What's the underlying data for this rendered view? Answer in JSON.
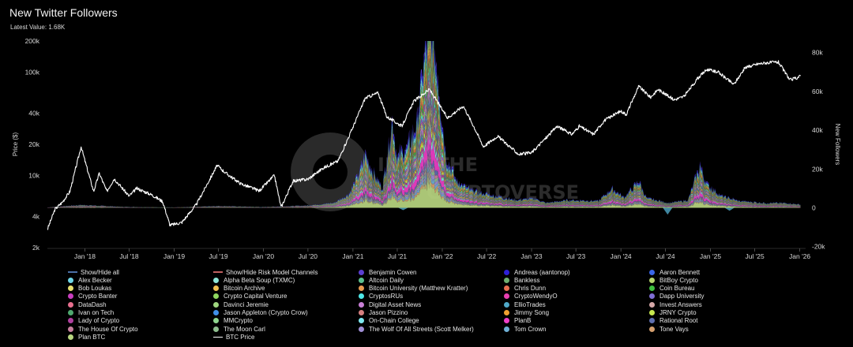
{
  "chart_data": {
    "type": "area",
    "title": "New Twitter Followers",
    "subtitle": "Latest Value: 1.68K",
    "ylabel_left": "Price ($)",
    "ylabel_right": "New Followers",
    "left_axis": {
      "scale": "log",
      "ticks": [
        2000,
        4000,
        10000,
        20000,
        40000,
        100000,
        200000
      ],
      "tick_labels": [
        "2k",
        "4k",
        "10k",
        "20k",
        "40k",
        "100k",
        "200k"
      ]
    },
    "right_axis": {
      "ticks": [
        -20000,
        0,
        20000,
        40000,
        60000,
        80000
      ],
      "tick_labels": [
        "-20k",
        "0",
        "20k",
        "40k",
        "60k",
        "80k"
      ]
    },
    "x_tick_labels": [
      "Jan '18",
      "Jul '18",
      "Jan '19",
      "Jul '19",
      "Jan '20",
      "Jul '20",
      "Jan '21",
      "Jul '21",
      "Jan '22",
      "Jul '22",
      "Jan '23",
      "Jul '23",
      "Jan '24",
      "Jul '24",
      "Jan '25",
      "Jul '25",
      "Jan '26"
    ],
    "watermark": "INTO THE CRYPTOVERSE",
    "btc_price": {
      "name": "BTC Price",
      "points": [
        [
          "2017-08-01",
          3000
        ],
        [
          "2017-09-01",
          4700
        ],
        [
          "2017-10-01",
          5500
        ],
        [
          "2017-11-01",
          7000
        ],
        [
          "2017-12-17",
          19000
        ],
        [
          "2018-01-01",
          14000
        ],
        [
          "2018-02-06",
          7000
        ],
        [
          "2018-03-01",
          10500
        ],
        [
          "2018-04-01",
          7000
        ],
        [
          "2018-05-01",
          9300
        ],
        [
          "2018-07-01",
          6300
        ],
        [
          "2018-08-01",
          7500
        ],
        [
          "2018-10-01",
          6500
        ],
        [
          "2018-11-15",
          5600
        ],
        [
          "2018-12-15",
          3300
        ],
        [
          "2019-02-01",
          3500
        ],
        [
          "2019-04-01",
          5200
        ],
        [
          "2019-06-26",
          12500
        ],
        [
          "2019-08-01",
          10500
        ],
        [
          "2019-10-01",
          8300
        ],
        [
          "2019-12-15",
          7100
        ],
        [
          "2020-02-15",
          10000
        ],
        [
          "2020-03-13",
          4900
        ],
        [
          "2020-05-01",
          8800
        ],
        [
          "2020-07-01",
          9200
        ],
        [
          "2020-09-01",
          11800
        ],
        [
          "2020-11-01",
          13800
        ],
        [
          "2020-12-31",
          29000
        ],
        [
          "2021-02-20",
          56000
        ],
        [
          "2021-04-14",
          63000
        ],
        [
          "2021-05-19",
          37000
        ],
        [
          "2021-07-20",
          30000
        ],
        [
          "2021-09-06",
          52000
        ],
        [
          "2021-11-10",
          68000
        ],
        [
          "2022-01-22",
          36000
        ],
        [
          "2022-03-28",
          47000
        ],
        [
          "2022-05-12",
          29000
        ],
        [
          "2022-06-18",
          19000
        ],
        [
          "2022-08-15",
          24000
        ],
        [
          "2022-11-09",
          16000
        ],
        [
          "2022-12-31",
          16500
        ],
        [
          "2023-03-15",
          25000
        ],
        [
          "2023-04-15",
          30000
        ],
        [
          "2023-06-15",
          25000
        ],
        [
          "2023-07-15",
          30000
        ],
        [
          "2023-09-11",
          25000
        ],
        [
          "2023-10-25",
          34000
        ],
        [
          "2023-12-31",
          42000
        ],
        [
          "2024-01-23",
          39000
        ],
        [
          "2024-03-14",
          73000
        ],
        [
          "2024-05-01",
          57000
        ],
        [
          "2024-06-01",
          68000
        ],
        [
          "2024-08-05",
          54000
        ],
        [
          "2024-09-15",
          58000
        ],
        [
          "2024-11-12",
          88000
        ],
        [
          "2024-12-17",
          106000
        ],
        [
          "2025-02-01",
          100000
        ],
        [
          "2025-04-07",
          76000
        ],
        [
          "2025-05-22",
          110000
        ],
        [
          "2025-07-14",
          120000
        ],
        [
          "2025-08-14",
          123000
        ],
        [
          "2025-10-06",
          125000
        ],
        [
          "2025-11-21",
          84000
        ],
        [
          "2025-12-20",
          88000
        ],
        [
          "2026-01-05",
          92000
        ]
      ]
    },
    "followers_total": {
      "name": "New Followers (stacked)",
      "points": [
        [
          "2017-08-01",
          200
        ],
        [
          "2017-12-20",
          1500
        ],
        [
          "2018-06-01",
          500
        ],
        [
          "2019-01-01",
          200
        ],
        [
          "2019-07-01",
          900
        ],
        [
          "2020-01-01",
          400
        ],
        [
          "2020-07-01",
          1200
        ],
        [
          "2020-10-15",
          2500
        ],
        [
          "2020-12-15",
          7000
        ],
        [
          "2021-01-20",
          16000
        ],
        [
          "2021-02-20",
          28000
        ],
        [
          "2021-03-25",
          18000
        ],
        [
          "2021-05-01",
          10000
        ],
        [
          "2021-05-15",
          22000
        ],
        [
          "2021-06-10",
          46000
        ],
        [
          "2021-07-01",
          26000
        ],
        [
          "2021-08-15",
          32000
        ],
        [
          "2021-09-20",
          45000
        ],
        [
          "2021-10-20",
          78000
        ],
        [
          "2021-11-15",
          96000
        ],
        [
          "2021-12-10",
          76000
        ],
        [
          "2022-01-15",
          28000
        ],
        [
          "2022-03-01",
          14000
        ],
        [
          "2022-05-01",
          9000
        ],
        [
          "2022-07-01",
          7000
        ],
        [
          "2022-11-01",
          4000
        ],
        [
          "2023-01-15",
          5000
        ],
        [
          "2023-03-01",
          2500
        ],
        [
          "2023-06-01",
          4000
        ],
        [
          "2023-10-01",
          3500
        ],
        [
          "2023-11-25",
          10000
        ],
        [
          "2024-01-15",
          5500
        ],
        [
          "2024-03-15",
          14000
        ],
        [
          "2024-04-15",
          5000
        ],
        [
          "2024-07-15",
          2500
        ],
        [
          "2024-10-01",
          4000
        ],
        [
          "2024-11-20",
          22000
        ],
        [
          "2024-12-20",
          12000
        ],
        [
          "2025-02-15",
          6000
        ],
        [
          "2025-05-01",
          3500
        ],
        [
          "2025-08-15",
          2500
        ],
        [
          "2025-11-01",
          2500
        ],
        [
          "2026-01-05",
          1700
        ]
      ]
    },
    "legend": [
      {
        "label": "Show/Hide all",
        "color": "#4a6fa5",
        "kind": "line"
      },
      {
        "label": "Show/Hide Risk Model Channels",
        "color": "#c06060",
        "kind": "line"
      },
      {
        "label": "Benjamin Cowen",
        "color": "#5b3fd1"
      },
      {
        "label": "Andreas (aantonop)",
        "color": "#2d1fd6"
      },
      {
        "label": "Aaron Bennett",
        "color": "#3a66e8"
      },
      {
        "label": "Alex Becker",
        "color": "#6fd6e8"
      },
      {
        "label": "Alpha Beta Soup (TXMC)",
        "color": "#8fe6d8"
      },
      {
        "label": "Altcoin Daily",
        "color": "#5bbf8f"
      },
      {
        "label": "Bankless",
        "color": "#6fae6f"
      },
      {
        "label": "BitBoy Crypto",
        "color": "#b8d66f"
      },
      {
        "label": "Bob Loukas",
        "color": "#e8e06f"
      },
      {
        "label": "Bitcoin Archive",
        "color": "#f0c050"
      },
      {
        "label": "Bitcoin University (Matthew Kratter)",
        "color": "#e89a50"
      },
      {
        "label": "Chris Dunn",
        "color": "#e86f50"
      },
      {
        "label": "Coin Bureau",
        "color": "#3fbf3f"
      },
      {
        "label": "Crypto Banter",
        "color": "#c93fbf"
      },
      {
        "label": "Crypto Capital Venture",
        "color": "#8fd65f"
      },
      {
        "label": "CryptosRUs",
        "color": "#4fe8e8"
      },
      {
        "label": "CryptoWendyO",
        "color": "#e83fb0"
      },
      {
        "label": "Dapp University",
        "color": "#7f6fd6"
      },
      {
        "label": "DataDash",
        "color": "#e86f8f"
      },
      {
        "label": "Davinci Jeremie",
        "color": "#9fd67f"
      },
      {
        "label": "Digital Asset News",
        "color": "#c87fd6"
      },
      {
        "label": "EllioTrades",
        "color": "#4fa8c8"
      },
      {
        "label": "Invest Answers",
        "color": "#d6a8a8"
      },
      {
        "label": "Ivan on Tech",
        "color": "#4fa86f"
      },
      {
        "label": "Jason Appleton (Crypto Crow)",
        "color": "#3f8fe8"
      },
      {
        "label": "Jason Pizzino",
        "color": "#d67f7f"
      },
      {
        "label": "Jimmy Song",
        "color": "#f0a030"
      },
      {
        "label": "JRNY Crypto",
        "color": "#c8e84f"
      },
      {
        "label": "Lady of Crypto",
        "color": "#b03fa0"
      },
      {
        "label": "MMCrypto",
        "color": "#8fd68f"
      },
      {
        "label": "On-Chain College",
        "color": "#7fe8f0"
      },
      {
        "label": "PlanB",
        "color": "#f03fc8"
      },
      {
        "label": "Rational Root",
        "color": "#5f6fb0"
      },
      {
        "label": "The House Of Crypto",
        "color": "#c87f9f"
      },
      {
        "label": "The Moon Carl",
        "color": "#8fbf8f"
      },
      {
        "label": "The Wolf Of All Streets (Scott Melker)",
        "color": "#a08fd6"
      },
      {
        "label": "Tom Crown",
        "color": "#6fb0d6"
      },
      {
        "label": "Tone Vays",
        "color": "#d6a06f"
      },
      {
        "label": "Plan BTC",
        "color": "#b8d680"
      },
      {
        "label": "BTC Price",
        "color": "#ffffff",
        "kind": "line"
      }
    ]
  }
}
